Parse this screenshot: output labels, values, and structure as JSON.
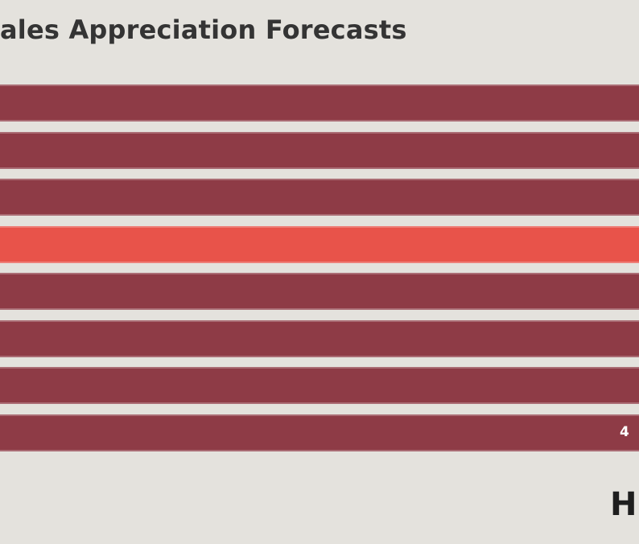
{
  "chart_data": {
    "type": "bar",
    "orientation": "horizontal",
    "title": "Sales Appreciation Forecasts",
    "title_visible": "ales Appreciation Forecasts",
    "bar_count": 8,
    "highlight_index": 3,
    "colors": {
      "bar": "#8e3b46",
      "highlight": "#e8534a",
      "background": "#e4e2dd",
      "title": "#343434"
    },
    "data_labels": [
      "",
      "",
      "",
      "",
      "",
      "",
      "",
      "4"
    ],
    "note_text": "H"
  }
}
